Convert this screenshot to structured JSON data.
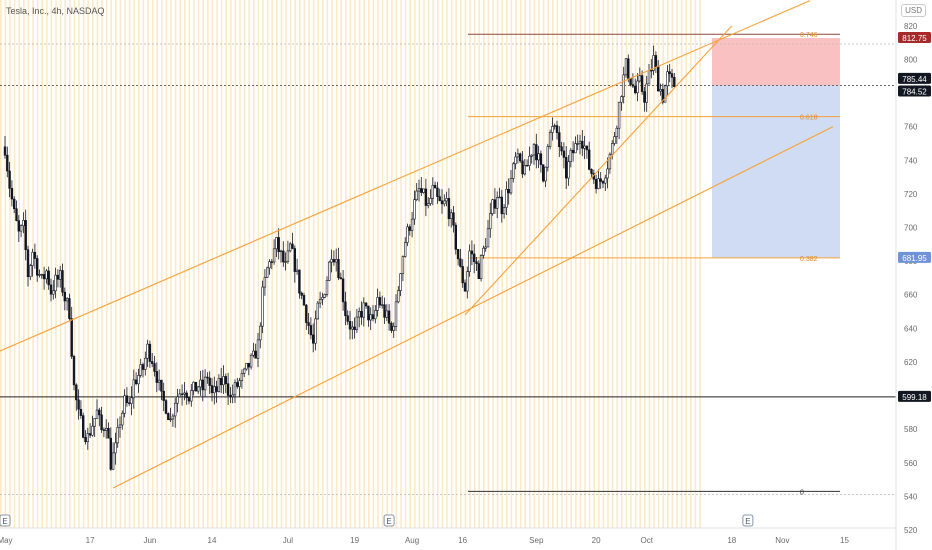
{
  "legend": "Tesla, Inc., 4h, NASDAQ",
  "currency_button": "USD",
  "colors": {
    "candle": "#131722",
    "channel": "#f7a13a",
    "fib": "#f7a13a",
    "stop_zone": "#f9c1c1",
    "target_zone": "#cfdcf3",
    "session_stripe": "#fbe3b8",
    "price_label_red": "#a52a2a",
    "price_label_dark": "#131722",
    "price_label_blue": "#6f93d6"
  },
  "chart_data": {
    "type": "candlestick",
    "title": "",
    "ylim": [
      520,
      830
    ],
    "y_ticks": [
      520,
      540,
      560,
      580,
      600,
      620,
      640,
      660,
      680,
      700,
      720,
      740,
      760,
      780,
      800,
      820
    ],
    "x_ticks": [
      {
        "label": "May",
        "bar": 0
      },
      {
        "label": "17",
        "bar": 37
      },
      {
        "label": "Jun",
        "bar": 63
      },
      {
        "label": "14",
        "bar": 90
      },
      {
        "label": "Jul",
        "bar": 123
      },
      {
        "label": "19",
        "bar": 152
      },
      {
        "label": "Aug",
        "bar": 177
      },
      {
        "label": "16",
        "bar": 199
      },
      {
        "label": "Sep",
        "bar": 231
      },
      {
        "label": "20",
        "bar": 257
      },
      {
        "label": "Oct",
        "bar": 279
      },
      {
        "label": "18",
        "bar": 316
      },
      {
        "label": "Nov",
        "bar": 338
      },
      {
        "label": "15",
        "bar": 365
      }
    ],
    "bar_count": 292,
    "anchors": [
      [
        0,
        748
      ],
      [
        2,
        725
      ],
      [
        4,
        708
      ],
      [
        6,
        696
      ],
      [
        8,
        700
      ],
      [
        10,
        672
      ],
      [
        12,
        686
      ],
      [
        14,
        676
      ],
      [
        16,
        668
      ],
      [
        18,
        674
      ],
      [
        20,
        662
      ],
      [
        22,
        668
      ],
      [
        24,
        670
      ],
      [
        26,
        658
      ],
      [
        28,
        650
      ],
      [
        30,
        605
      ],
      [
        32,
        588
      ],
      [
        34,
        580
      ],
      [
        36,
        575
      ],
      [
        38,
        583
      ],
      [
        40,
        590
      ],
      [
        42,
        579
      ],
      [
        44,
        585
      ],
      [
        46,
        560
      ],
      [
        48,
        568
      ],
      [
        50,
        585
      ],
      [
        52,
        596
      ],
      [
        54,
        593
      ],
      [
        56,
        608
      ],
      [
        58,
        612
      ],
      [
        60,
        616
      ],
      [
        62,
        628
      ],
      [
        64,
        622
      ],
      [
        66,
        612
      ],
      [
        68,
        598
      ],
      [
        70,
        594
      ],
      [
        72,
        585
      ],
      [
        74,
        598
      ],
      [
        76,
        602
      ],
      [
        78,
        605
      ],
      [
        80,
        600
      ],
      [
        82,
        603
      ],
      [
        84,
        606
      ],
      [
        86,
        604
      ],
      [
        88,
        612
      ],
      [
        90,
        600
      ],
      [
        92,
        603
      ],
      [
        94,
        608
      ],
      [
        96,
        610
      ],
      [
        98,
        598
      ],
      [
        100,
        604
      ],
      [
        102,
        608
      ],
      [
        104,
        612
      ],
      [
        106,
        618
      ],
      [
        108,
        622
      ],
      [
        110,
        630
      ],
      [
        112,
        660
      ],
      [
        114,
        675
      ],
      [
        116,
        682
      ],
      [
        118,
        690
      ],
      [
        120,
        683
      ],
      [
        122,
        676
      ],
      [
        124,
        688
      ],
      [
        126,
        678
      ],
      [
        128,
        664
      ],
      [
        130,
        654
      ],
      [
        132,
        642
      ],
      [
        134,
        630
      ],
      [
        136,
        652
      ],
      [
        138,
        658
      ],
      [
        140,
        670
      ],
      [
        142,
        686
      ],
      [
        144,
        682
      ],
      [
        146,
        668
      ],
      [
        148,
        650
      ],
      [
        150,
        642
      ],
      [
        152,
        636
      ],
      [
        154,
        648
      ],
      [
        156,
        652
      ],
      [
        158,
        648
      ],
      [
        160,
        642
      ],
      [
        162,
        658
      ],
      [
        164,
        652
      ],
      [
        166,
        646
      ],
      [
        168,
        638
      ],
      [
        170,
        652
      ],
      [
        172,
        676
      ],
      [
        174,
        692
      ],
      [
        176,
        702
      ],
      [
        178,
        714
      ],
      [
        180,
        722
      ],
      [
        182,
        718
      ],
      [
        184,
        712
      ],
      [
        186,
        722
      ],
      [
        188,
        716
      ],
      [
        190,
        712
      ],
      [
        192,
        716
      ],
      [
        194,
        704
      ],
      [
        196,
        690
      ],
      [
        198,
        674
      ],
      [
        200,
        664
      ],
      [
        202,
        686
      ],
      [
        204,
        680
      ],
      [
        206,
        674
      ],
      [
        208,
        686
      ],
      [
        210,
        698
      ],
      [
        212,
        712
      ],
      [
        214,
        720
      ],
      [
        216,
        712
      ],
      [
        218,
        720
      ],
      [
        220,
        728
      ],
      [
        222,
        740
      ],
      [
        224,
        738
      ],
      [
        226,
        732
      ],
      [
        228,
        742
      ],
      [
        230,
        750
      ],
      [
        232,
        740
      ],
      [
        234,
        728
      ],
      [
        236,
        752
      ],
      [
        238,
        758
      ],
      [
        240,
        756
      ],
      [
        242,
        742
      ],
      [
        244,
        732
      ],
      [
        246,
        742
      ],
      [
        248,
        748
      ],
      [
        250,
        756
      ],
      [
        252,
        748
      ],
      [
        254,
        736
      ],
      [
        256,
        730
      ],
      [
        258,
        726
      ],
      [
        260,
        730
      ],
      [
        262,
        738
      ],
      [
        264,
        748
      ],
      [
        266,
        764
      ],
      [
        268,
        782
      ],
      [
        270,
        796
      ],
      [
        272,
        788
      ],
      [
        274,
        780
      ],
      [
        276,
        786
      ],
      [
        278,
        778
      ],
      [
        280,
        790
      ],
      [
        282,
        800
      ],
      [
        284,
        786
      ],
      [
        286,
        778
      ],
      [
        288,
        790
      ],
      [
        290,
        786
      ],
      [
        291,
        785
      ]
    ],
    "channel_lines": [
      {
        "p1": [
          -3,
          626
        ],
        "p2": [
          350,
          835
        ]
      },
      {
        "p1": [
          47,
          545
        ],
        "p2": [
          360,
          760
        ]
      },
      {
        "p1": [
          200,
          648
        ],
        "p2": [
          316,
          820
        ]
      }
    ],
    "fib_levels": [
      {
        "label": "0.746",
        "value": 815
      },
      {
        "label": "0.618",
        "value": 766
      },
      {
        "label": "0.382",
        "value": 681.95
      },
      {
        "label": "0",
        "value": 543
      }
    ],
    "horizontal_lines": [
      {
        "value": 599.18
      }
    ],
    "position": {
      "entry": 784.52,
      "stop": 812.75,
      "target": 681.95
    },
    "price_labels": [
      {
        "text": "812.75",
        "value": 812.75,
        "style": "red"
      },
      {
        "text": "785.44",
        "value": 785.44,
        "style": "dark"
      },
      {
        "text": "784.52",
        "value": 784.52,
        "style": "dark"
      },
      {
        "text": "681.95",
        "value": 681.95,
        "style": "blue"
      },
      {
        "text": "599.18",
        "value": 599.18,
        "style": "dark"
      }
    ],
    "event_markers": [
      {
        "label": "E",
        "bar": 0
      },
      {
        "label": "E",
        "bar": 167
      },
      {
        "label": "E",
        "bar": 323
      }
    ]
  }
}
